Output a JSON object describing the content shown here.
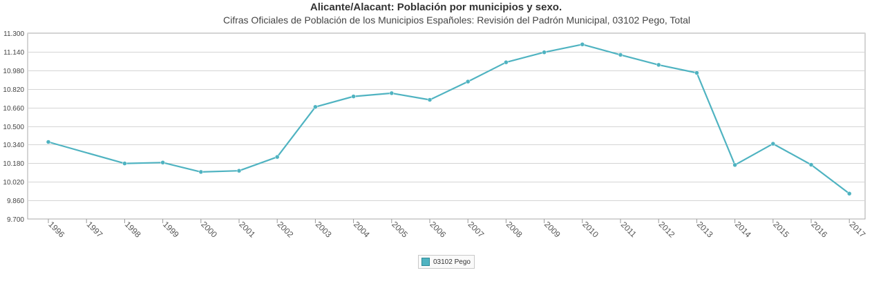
{
  "title": "Alicante/Alacant: Población por municipios y sexo.",
  "subtitle": "Cifras Oficiales de Población de los Municipios Españoles: Revisión del Padrón Municipal, 03102 Pego, Total",
  "colors": {
    "series": "#4fb3c1",
    "grid": "#d4d4d4",
    "axis": "#777777"
  },
  "chart_data": {
    "type": "line",
    "categories": [
      "1996",
      "1997",
      "1998",
      "1999",
      "2000",
      "2001",
      "2002",
      "2003",
      "2004",
      "2005",
      "2006",
      "2007",
      "2008",
      "2009",
      "2010",
      "2011",
      "2012",
      "2013",
      "2014",
      "2015",
      "2016",
      "2017"
    ],
    "series": [
      {
        "name": "03102 Pego",
        "values": [
          10363,
          null,
          10178,
          10186,
          10105,
          10115,
          10234,
          10665,
          10755,
          10783,
          10726,
          10883,
          11049,
          11135,
          11203,
          11113,
          11027,
          10958,
          10165,
          10348,
          10167,
          9918
        ]
      }
    ],
    "yticks": [
      "11.300",
      "11.140",
      "10.980",
      "10.820",
      "10.660",
      "10.500",
      "10.340",
      "10.180",
      "10.020",
      "9.860",
      "9.700"
    ],
    "ylim": [
      9700,
      11300
    ],
    "grid": true,
    "legend_position": "bottom-center"
  }
}
